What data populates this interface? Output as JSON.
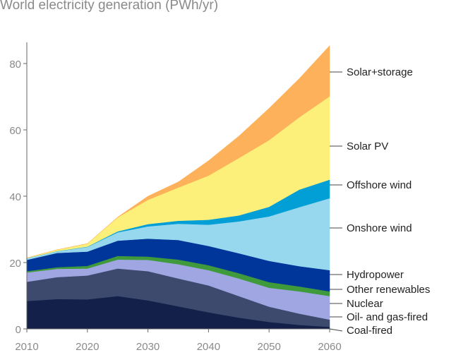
{
  "chart_data": {
    "type": "area",
    "stacked": true,
    "title": "World electricity generation (PWh/yr)",
    "xlabel": "",
    "ylabel": "",
    "xlim": [
      2010,
      2060
    ],
    "ylim": [
      0,
      86
    ],
    "x_ticks": [
      "2010",
      "2020",
      "2030",
      "2040",
      "2050",
      "2060"
    ],
    "y_ticks": [
      "0",
      "20",
      "40",
      "60",
      "80"
    ],
    "grid": false,
    "legend": "right, direct labels",
    "x": [
      2010,
      2015,
      2020,
      2025,
      2030,
      2035,
      2040,
      2045,
      2050,
      2055,
      2060
    ],
    "series": [
      {
        "name": "Coal-fired",
        "color": "#13204a",
        "values": [
          8.4,
          9.0,
          8.9,
          9.9,
          8.6,
          6.8,
          5.0,
          3.4,
          2.1,
          1.2,
          0.6
        ]
      },
      {
        "name": "Oil- and gas-fired",
        "color": "#3d4a6e",
        "values": [
          5.8,
          6.6,
          7.2,
          8.3,
          8.8,
          8.4,
          8.1,
          6.5,
          4.6,
          3.4,
          2.2
        ]
      },
      {
        "name": "Nuclear",
        "color": "#a0a6e2",
        "values": [
          2.8,
          2.5,
          2.1,
          2.7,
          3.4,
          4.3,
          4.6,
          5.3,
          5.7,
          6.7,
          7.1
        ]
      },
      {
        "name": "Other renewables",
        "color": "#3e9a3a",
        "values": [
          0.4,
          0.5,
          0.8,
          1.1,
          1.0,
          1.4,
          1.5,
          1.6,
          1.7,
          1.5,
          1.4
        ]
      },
      {
        "name": "Hydropower",
        "color": "#00359a",
        "values": [
          3.4,
          4.3,
          4.3,
          4.6,
          5.4,
          5.9,
          5.8,
          6.0,
          6.4,
          6.1,
          6.4
        ]
      },
      {
        "name": "Onshore wind",
        "color": "#97d8ef",
        "values": [
          0.5,
          0.5,
          1.4,
          2.5,
          3.7,
          4.9,
          6.4,
          9.6,
          13.4,
          17.8,
          21.7
        ]
      },
      {
        "name": "Offshore wind",
        "color": "#029fd6",
        "values": [
          0.0,
          0.05,
          0.1,
          0.3,
          0.7,
          0.9,
          1.5,
          1.8,
          2.9,
          5.3,
          5.6
        ]
      },
      {
        "name": "Solar PV",
        "color": "#fdf07a",
        "values": [
          0.1,
          0.4,
          0.9,
          4.2,
          7.3,
          10.0,
          13.3,
          17.3,
          20.1,
          21.8,
          25.1
        ]
      },
      {
        "name": "Solar+storage",
        "color": "#fdb15a",
        "values": [
          0.0,
          0.0,
          0.0,
          0.1,
          1.1,
          1.7,
          4.5,
          6.6,
          9.6,
          11.7,
          15.3
        ]
      }
    ]
  }
}
